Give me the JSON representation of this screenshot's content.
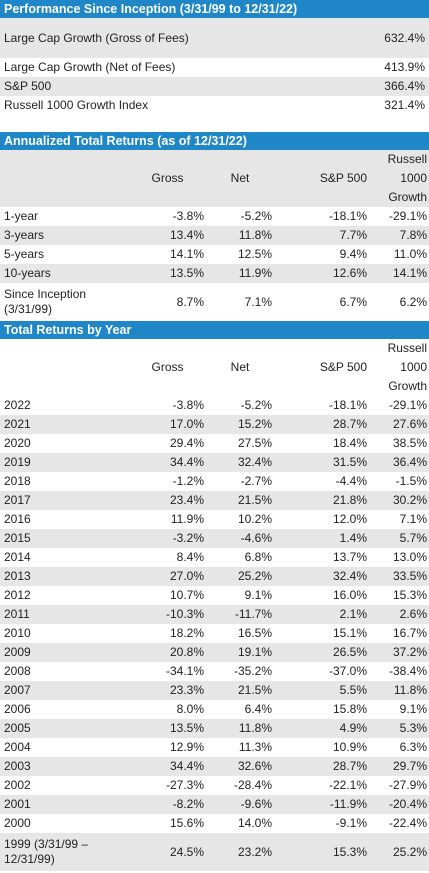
{
  "performance": {
    "header": "Performance Since Inception (3/31/99 to 12/31/22)",
    "rows": [
      {
        "label": "Large Cap Growth (Gross of Fees)",
        "value": "632.4%"
      },
      {
        "label": "Large Cap Growth (Net of Fees)",
        "value": "413.9%"
      },
      {
        "label": "S&P 500",
        "value": "366.4%"
      },
      {
        "label": "Russell 1000 Growth Index",
        "value": "321.4%"
      }
    ]
  },
  "annualized": {
    "header": "Annualized Total Returns (as of 12/31/22)",
    "columns": {
      "gross": "Gross",
      "net": "Net",
      "sp500": "S&P 500",
      "russell_1": "Russell",
      "russell_2": "1000",
      "russell_3": "Growth"
    },
    "rows": [
      {
        "label": "1-year",
        "gross": "-3.8%",
        "net": "-5.2%",
        "sp500": "-18.1%",
        "russell": "-29.1%"
      },
      {
        "label": "3-years",
        "gross": "13.4%",
        "net": "11.8%",
        "sp500": "7.7%",
        "russell": "7.8%"
      },
      {
        "label": "5-years",
        "gross": "14.1%",
        "net": "12.5%",
        "sp500": "9.4%",
        "russell": "11.0%"
      },
      {
        "label": "10-years",
        "gross": "13.5%",
        "net": "11.9%",
        "sp500": "12.6%",
        "russell": "14.1%"
      },
      {
        "label": "Since Inception (3/31/99)",
        "gross": "8.7%",
        "net": "7.1%",
        "sp500": "6.7%",
        "russell": "6.2%"
      }
    ]
  },
  "by_year": {
    "header": "Total Returns by Year",
    "columns": {
      "gross": "Gross",
      "net": "Net",
      "sp500": "S&P 500",
      "russell_1": "Russell",
      "russell_2": "1000",
      "russell_3": "Growth"
    },
    "rows": [
      {
        "label": "2022",
        "gross": "-3.8%",
        "net": "-5.2%",
        "sp500": "-18.1%",
        "russell": "-29.1%"
      },
      {
        "label": "2021",
        "gross": "17.0%",
        "net": "15.2%",
        "sp500": "28.7%",
        "russell": "27.6%"
      },
      {
        "label": "2020",
        "gross": "29.4%",
        "net": "27.5%",
        "sp500": "18.4%",
        "russell": "38.5%"
      },
      {
        "label": "2019",
        "gross": "34.4%",
        "net": "32.4%",
        "sp500": "31.5%",
        "russell": "36.4%"
      },
      {
        "label": "2018",
        "gross": "-1.2%",
        "net": "-2.7%",
        "sp500": "-4.4%",
        "russell": "-1.5%"
      },
      {
        "label": "2017",
        "gross": "23.4%",
        "net": "21.5%",
        "sp500": "21.8%",
        "russell": "30.2%"
      },
      {
        "label": "2016",
        "gross": "11.9%",
        "net": "10.2%",
        "sp500": "12.0%",
        "russell": "7.1%"
      },
      {
        "label": "2015",
        "gross": "-3.2%",
        "net": "-4.6%",
        "sp500": "1.4%",
        "russell": "5.7%"
      },
      {
        "label": "2014",
        "gross": "8.4%",
        "net": "6.8%",
        "sp500": "13.7%",
        "russell": "13.0%"
      },
      {
        "label": "2013",
        "gross": "27.0%",
        "net": "25.2%",
        "sp500": "32.4%",
        "russell": "33.5%"
      },
      {
        "label": "2012",
        "gross": "10.7%",
        "net": "9.1%",
        "sp500": "16.0%",
        "russell": "15.3%"
      },
      {
        "label": "2011",
        "gross": "-10.3%",
        "net": "-11.7%",
        "sp500": "2.1%",
        "russell": "2.6%"
      },
      {
        "label": "2010",
        "gross": "18.2%",
        "net": "16.5%",
        "sp500": "15.1%",
        "russell": "16.7%"
      },
      {
        "label": "2009",
        "gross": "20.8%",
        "net": "19.1%",
        "sp500": "26.5%",
        "russell": "37.2%"
      },
      {
        "label": "2008",
        "gross": "-34.1%",
        "net": "-35.2%",
        "sp500": "-37.0%",
        "russell": "-38.4%"
      },
      {
        "label": "2007",
        "gross": "23.3%",
        "net": "21.5%",
        "sp500": "5.5%",
        "russell": "11.8%"
      },
      {
        "label": "2006",
        "gross": "8.0%",
        "net": "6.4%",
        "sp500": "15.8%",
        "russell": "9.1%"
      },
      {
        "label": "2005",
        "gross": "13.5%",
        "net": "11.8%",
        "sp500": "4.9%",
        "russell": "5.3%"
      },
      {
        "label": "2004",
        "gross": "12.9%",
        "net": "11.3%",
        "sp500": "10.9%",
        "russell": "6.3%"
      },
      {
        "label": "2003",
        "gross": "34.4%",
        "net": "32.6%",
        "sp500": "28.7%",
        "russell": "29.7%"
      },
      {
        "label": "2002",
        "gross": "-27.3%",
        "net": "-28.4%",
        "sp500": "-22.1%",
        "russell": "-27.9%"
      },
      {
        "label": "2001",
        "gross": "-8.2%",
        "net": "-9.6%",
        "sp500": "-11.9%",
        "russell": "-20.4%"
      },
      {
        "label": "2000",
        "gross": "15.6%",
        "net": "14.0%",
        "sp500": "-9.1%",
        "russell": "-22.4%"
      },
      {
        "label": "1999 (3/31/99 – 12/31/99)",
        "gross": "24.5%",
        "net": "23.2%",
        "sp500": "15.3%",
        "russell": "25.2%"
      }
    ]
  },
  "colors": {
    "header_bg": "#1f87c7",
    "shade": "#e6e6e6"
  }
}
